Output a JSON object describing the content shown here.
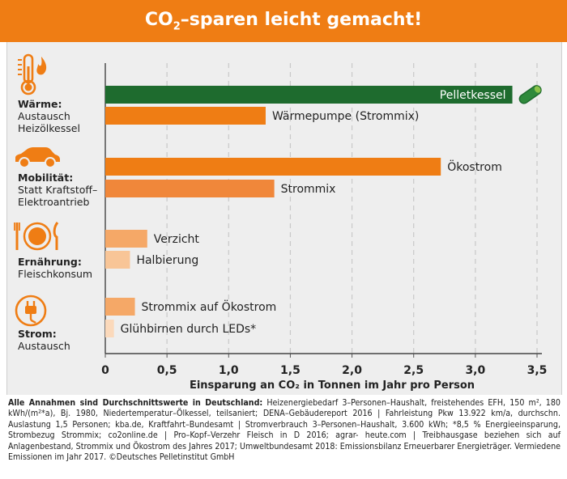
{
  "header": {
    "title_main": "CO",
    "title_sub": "2",
    "title_rest": "–sparen leicht gemacht!"
  },
  "categories": [
    {
      "title": "Wärme:",
      "sub1": "Austausch",
      "sub2": "Heizölkessel",
      "icon": "thermometer-flame-icon"
    },
    {
      "title": "Mobilität:",
      "sub1": "Statt Kraftstoff–",
      "sub2": "Elektroantrieb",
      "icon": "car-icon"
    },
    {
      "title": "Ernährung:",
      "sub1": "Fleischkonsum",
      "sub2": "",
      "icon": "plate-cutlery-icon"
    },
    {
      "title": "Strom:",
      "sub1": "Austausch",
      "sub2": "",
      "icon": "plug-icon"
    }
  ],
  "chart_data": {
    "type": "bar",
    "orientation": "horizontal",
    "xlabel": "Einsparung an CO₂ in Tonnen im Jahr pro Person",
    "xlim": [
      0,
      3.5
    ],
    "xticks": [
      "0",
      "0,5",
      "1,0",
      "1,5",
      "2,0",
      "2,5",
      "3,0",
      "3,5"
    ],
    "grid": "vertical dashed",
    "bars": [
      {
        "label": "Pelletkessel",
        "value": 3.3,
        "color": "#1e6b2e",
        "label_inside": true
      },
      {
        "label": "Wärmepumpe (Strommix)",
        "value": 1.3,
        "color": "#ef7d14",
        "label_inside": false
      },
      {
        "label": "Ökostrom",
        "value": 2.72,
        "color": "#ef7d14",
        "label_inside": false
      },
      {
        "label": "Strommix",
        "value": 1.37,
        "color": "#f0873a",
        "label_inside": false
      },
      {
        "label": "Verzicht",
        "value": 0.34,
        "color": "#f5a867",
        "label_inside": false
      },
      {
        "label": "Halbierung",
        "value": 0.2,
        "color": "#f8c597",
        "label_inside": false
      },
      {
        "label": "Strommix auf Ökostrom",
        "value": 0.24,
        "color": "#f5a867",
        "label_inside": false
      },
      {
        "label": "Glühbirnen durch LEDs*",
        "value": 0.07,
        "color": "#fbd9bb",
        "label_inside": false
      }
    ]
  },
  "footer": {
    "bold": "Alle Annahmen sind Durchschnittswerte in Deutschland:",
    "text": " Heizenergiebedarf 3–Personen–Haushalt, freistehendes EFH, 150 m², 180 kWh/(m²*a), Bj. 1980, Niedertemperatur–Ölkessel, teilsaniert; DENA–Gebäudereport 2016 | Fahrleistung Pkw 13.922 km/a, durchschn. Auslastung 1,5 Personen; kba.de, Kraftfahrt–Bundesamt | Stromverbrauch 3–Personen–Haushalt, 3.600 kWh; *8,5 % Energieeinsparung, Strombezug Strommix; co2online.de | Pro–Kopf–Verzehr Fleisch in D 2016; agrar- heute.com | Treibhausgase beziehen sich auf Anlagenbestand, Strommix und Ökostrom des Jahres 2017; Umweltbundesamt 2018: Emissionsbilanz Erneuerbarer Energieträger. Vermiedene Emissionen im Jahr 2017. ©Deutsches Pelletinstitut GmbH"
  }
}
